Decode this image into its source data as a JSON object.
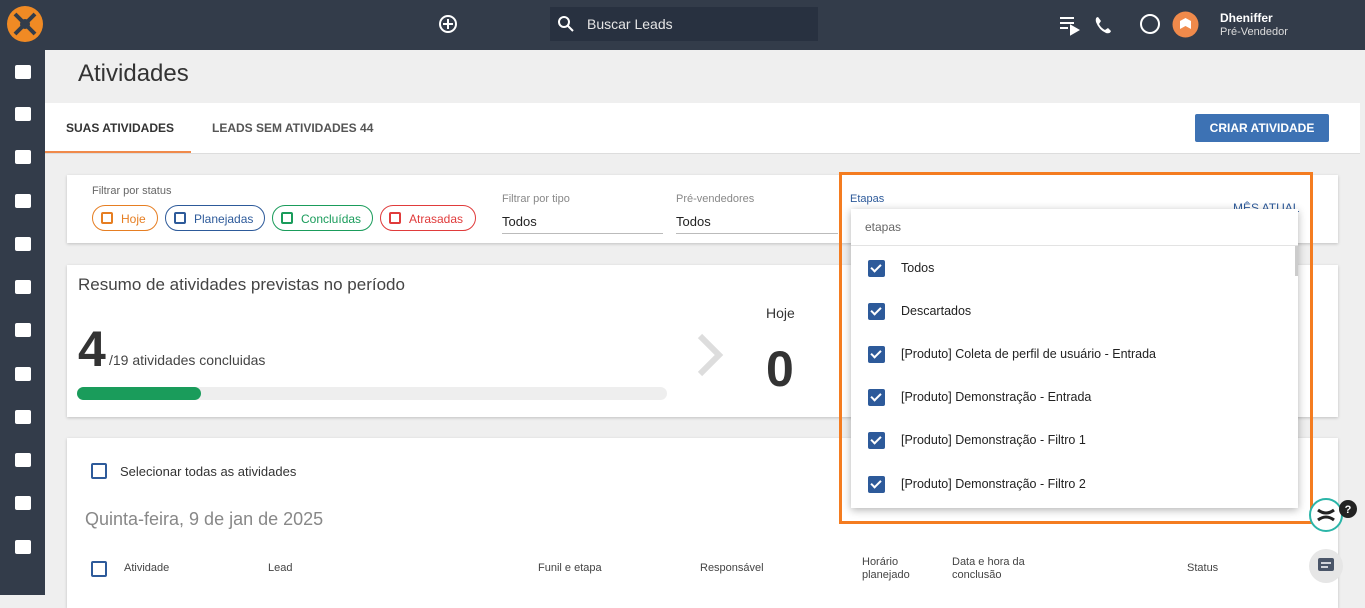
{
  "topbar": {
    "search_placeholder": "Buscar Leads",
    "user_name": "Dheniffer",
    "user_role": "Pré-Vendedor"
  },
  "page": {
    "title": "Atividades"
  },
  "tabs": [
    "SUAS ATIVIDADES",
    "LEADS SEM ATIVIDADES 44"
  ],
  "create_button": "CRIAR ATIVIDADE",
  "filters": {
    "status_label": "Filtrar por status",
    "status_chips": [
      "Hoje",
      "Planejadas",
      "Concluídas",
      "Atrasadas"
    ],
    "type_label": "Filtrar por tipo",
    "type_value": "Todos",
    "presales_label": "Pré-vendedores",
    "presales_value": "Todos",
    "stages_label": "Etapas",
    "period": "MÊS ATUAL"
  },
  "summary": {
    "title": "Resumo de atividades previstas no período",
    "done": "4",
    "total_text": "/19 atividades concluidas",
    "today_label": "Hoje",
    "today_value": "0"
  },
  "list": {
    "select_all": "Selecionar todas as atividades",
    "date": "Quinta-feira, 9 de jan de 2025",
    "columns": [
      "Atividade",
      "Lead",
      "Funil e etapa",
      "Responsável",
      "Horário planejado",
      "Data e hora da conclusão",
      "Status"
    ]
  },
  "dropdown": {
    "search_placeholder": "etapas",
    "options": [
      "Todos",
      "Descartados",
      "[Produto] Coleta de perfil de usuário - Entrada",
      "[Produto] Demonstração - Entrada",
      "[Produto] Demonstração - Filtro 1",
      "[Produto] Demonstração - Filtro 2"
    ]
  }
}
